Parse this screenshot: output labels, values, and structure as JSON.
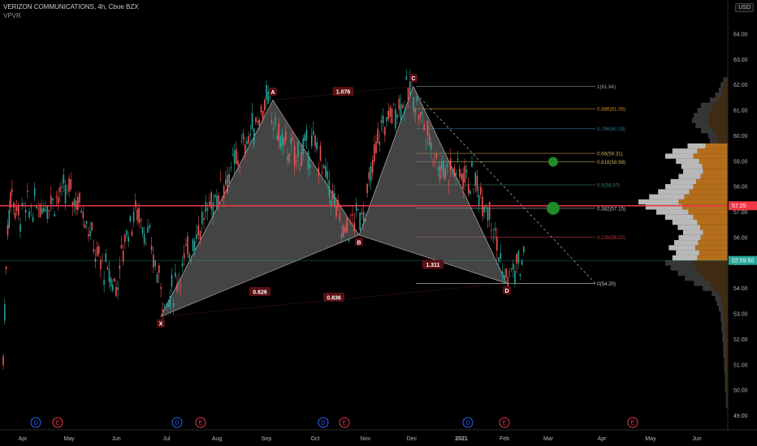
{
  "header": {
    "title": "VERIZON COMMUNICATIONS, 4h, Cboe BZX",
    "indicator": "VPVR",
    "currency": "USD"
  },
  "chart_data": {
    "type": "line",
    "title": "VERIZON COMMUNICATIONS, 4h, Cboe BZX",
    "xlabel": "",
    "ylabel": "",
    "y_ticks": [
      49.0,
      50.0,
      51.0,
      52.0,
      53.0,
      54.0,
      55.0,
      56.0,
      57.0,
      58.0,
      59.0,
      60.0,
      61.0,
      62.0,
      63.0,
      64.0
    ],
    "ylim": [
      48.7,
      64.7
    ],
    "x_ticks": [
      "Apr",
      "May",
      "Jun",
      "Jul",
      "Aug",
      "Sep",
      "Oct",
      "Nov",
      "Dec",
      "2021",
      "Feb",
      "Mar",
      "Apr",
      "May",
      "Jun"
    ],
    "series": [
      {
        "name": "Price",
        "points": [
          [
            "Apr",
            51.3
          ],
          [
            "Apr",
            56.6
          ],
          [
            "Apr",
            57.9
          ],
          [
            "Apr",
            56.9
          ],
          [
            "May",
            57.8
          ],
          [
            "May",
            57.2
          ],
          [
            "May",
            55.2
          ],
          [
            "Jun",
            54.1
          ],
          [
            "Jun",
            56.3
          ],
          [
            "Jun",
            57.1
          ],
          [
            "Jun",
            56.0
          ],
          [
            "Jul",
            53.3
          ],
          [
            "Jul",
            54.7
          ],
          [
            "Jul",
            56.1
          ],
          [
            "Aug",
            57.7
          ],
          [
            "Aug",
            59.1
          ],
          [
            "Sep",
            61.4
          ],
          [
            "Sep",
            59.8
          ],
          [
            "Sep",
            59.2
          ],
          [
            "Oct",
            59.6
          ],
          [
            "Oct",
            58.0
          ],
          [
            "Oct",
            56.2
          ],
          [
            "Nov",
            57.2
          ],
          [
            "Nov",
            60.2
          ],
          [
            "Nov",
            61.0
          ],
          [
            "Dec",
            61.8
          ],
          [
            "Dec",
            60.2
          ],
          [
            "Dec",
            58.8
          ],
          [
            "2021",
            58.6
          ],
          [
            "2021",
            58.1
          ],
          [
            "2021",
            57.2
          ],
          [
            "Feb",
            54.3
          ],
          [
            "Feb",
            55.1
          ]
        ]
      }
    ],
    "harmonic_pattern": {
      "points": [
        {
          "label": "X",
          "date": "Jul",
          "price": 52.9
        },
        {
          "label": "A",
          "date": "Sep",
          "price": 61.4
        },
        {
          "label": "B",
          "date": "Nov",
          "price": 56.1
        },
        {
          "label": "C",
          "date": "Dec",
          "price": 61.94
        },
        {
          "label": "D",
          "date": "Feb",
          "price": 54.2
        }
      ],
      "ratios": [
        "1.076",
        "0.626",
        "1.311",
        "0.836"
      ],
      "fib_levels": [
        {
          "label": "1(61.94)",
          "price": 61.94,
          "color": "#9aa0aa"
        },
        {
          "label": "0.886(61.06)",
          "price": 61.06,
          "color": "#d08c2c"
        },
        {
          "label": "0.786(60.28)",
          "price": 60.28,
          "color": "#2f6f8f"
        },
        {
          "label": "0.66(59.31)",
          "price": 59.31,
          "color": "#c9b05a"
        },
        {
          "label": "0.618(58.98)",
          "price": 58.98,
          "color": "#c9b05a"
        },
        {
          "label": "0.5(58.07)",
          "price": 58.07,
          "color": "#3a8a5a"
        },
        {
          "label": "0.382(57.15)",
          "price": 57.15,
          "color": "#c7c7c7"
        },
        {
          "label": "0.236(56.02)",
          "price": 56.02,
          "color": "#b23a3a"
        },
        {
          "label": "0(54.20)",
          "price": 54.2,
          "color": "#c7c7c7"
        }
      ]
    },
    "price_labels": [
      {
        "text": "57.25",
        "price": 57.25,
        "color": "#f23645"
      },
      {
        "text": "02:59:50",
        "price": 55.1,
        "color": "#26a69a"
      }
    ],
    "event_markers": [
      {
        "letter": "D",
        "date": "Apr"
      },
      {
        "letter": "E",
        "date": "May"
      },
      {
        "letter": "D",
        "date": "Jul"
      },
      {
        "letter": "E",
        "date": "Jul"
      },
      {
        "letter": "D",
        "date": "Oct"
      },
      {
        "letter": "E",
        "date": "Oct"
      },
      {
        "letter": "D",
        "date": "2021"
      },
      {
        "letter": "E",
        "date": "Feb"
      },
      {
        "letter": "E",
        "date": "Apr"
      }
    ],
    "volume_profile": [
      {
        "price": 62.2,
        "vol": 0.05
      },
      {
        "price": 62.0,
        "vol": 0.08
      },
      {
        "price": 61.8,
        "vol": 0.1
      },
      {
        "price": 61.6,
        "vol": 0.14
      },
      {
        "price": 61.4,
        "vol": 0.2
      },
      {
        "price": 61.2,
        "vol": 0.3
      },
      {
        "price": 61.0,
        "vol": 0.34
      },
      {
        "price": 60.8,
        "vol": 0.38
      },
      {
        "price": 60.6,
        "vol": 0.4
      },
      {
        "price": 60.4,
        "vol": 0.36
      },
      {
        "price": 60.2,
        "vol": 0.3
      },
      {
        "price": 60.0,
        "vol": 0.22
      },
      {
        "price": 59.8,
        "vol": 0.2
      },
      {
        "price": 59.6,
        "vol": 0.45
      },
      {
        "price": 59.4,
        "vol": 0.62
      },
      {
        "price": 59.2,
        "vol": 0.7
      },
      {
        "price": 59.0,
        "vol": 0.58
      },
      {
        "price": 58.8,
        "vol": 0.52
      },
      {
        "price": 58.6,
        "vol": 0.5
      },
      {
        "price": 58.4,
        "vol": 0.55
      },
      {
        "price": 58.2,
        "vol": 0.64
      },
      {
        "price": 58.0,
        "vol": 0.7
      },
      {
        "price": 57.8,
        "vol": 0.78
      },
      {
        "price": 57.6,
        "vol": 0.88
      },
      {
        "price": 57.4,
        "vol": 1.0
      },
      {
        "price": 57.2,
        "vol": 0.92
      },
      {
        "price": 57.0,
        "vol": 0.8
      },
      {
        "price": 56.8,
        "vol": 0.7
      },
      {
        "price": 56.6,
        "vol": 0.62
      },
      {
        "price": 56.4,
        "vol": 0.56
      },
      {
        "price": 56.2,
        "vol": 0.5
      },
      {
        "price": 56.0,
        "vol": 0.55
      },
      {
        "price": 55.8,
        "vol": 0.6
      },
      {
        "price": 55.6,
        "vol": 0.66
      },
      {
        "price": 55.4,
        "vol": 0.58
      },
      {
        "price": 55.2,
        "vol": 0.62
      },
      {
        "price": 55.0,
        "vol": 0.7
      },
      {
        "price": 54.8,
        "vol": 0.64
      },
      {
        "price": 54.6,
        "vol": 0.56
      },
      {
        "price": 54.4,
        "vol": 0.48
      },
      {
        "price": 54.2,
        "vol": 0.38
      },
      {
        "price": 54.0,
        "vol": 0.28
      },
      {
        "price": 53.8,
        "vol": 0.18
      },
      {
        "price": 53.6,
        "vol": 0.14
      },
      {
        "price": 53.4,
        "vol": 0.12
      },
      {
        "price": 53.2,
        "vol": 0.1
      },
      {
        "price": 53.0,
        "vol": 0.08
      },
      {
        "price": 52.8,
        "vol": 0.08
      },
      {
        "price": 52.6,
        "vol": 0.07
      },
      {
        "price": 52.4,
        "vol": 0.07
      },
      {
        "price": 52.2,
        "vol": 0.06
      },
      {
        "price": 52.0,
        "vol": 0.06
      },
      {
        "price": 51.8,
        "vol": 0.05
      },
      {
        "price": 51.6,
        "vol": 0.05
      },
      {
        "price": 51.4,
        "vol": 0.05
      },
      {
        "price": 51.2,
        "vol": 0.04
      },
      {
        "price": 51.0,
        "vol": 0.04
      },
      {
        "price": 50.8,
        "vol": 0.04
      },
      {
        "price": 50.6,
        "vol": 0.03
      },
      {
        "price": 50.4,
        "vol": 0.03
      },
      {
        "price": 50.2,
        "vol": 0.03
      },
      {
        "price": 50.0,
        "vol": 0.03
      },
      {
        "price": 49.8,
        "vol": 0.02
      },
      {
        "price": 49.6,
        "vol": 0.02
      },
      {
        "price": 49.4,
        "vol": 0.02
      }
    ],
    "profile_value_area": [
      55.2,
      59.7
    ],
    "grid": false,
    "legend": "top-left"
  }
}
